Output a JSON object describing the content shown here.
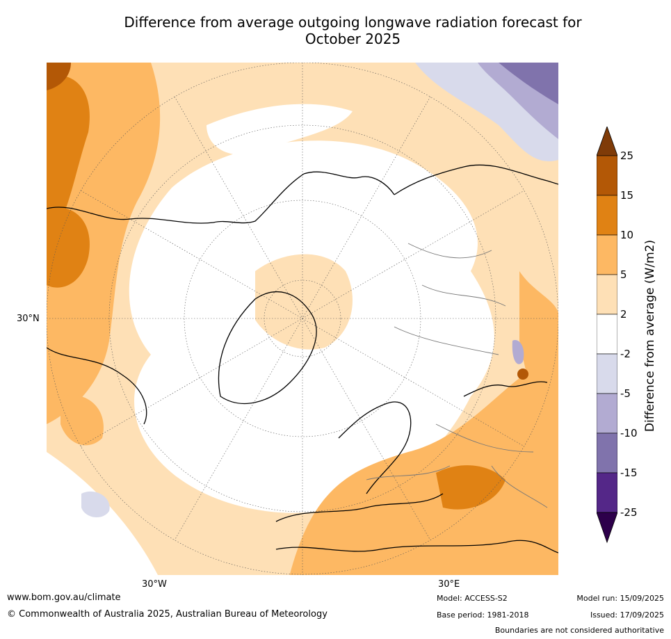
{
  "title": {
    "line1": "Difference from average outgoing longwave radiation forecast for",
    "line2": "October 2025"
  },
  "map": {
    "projection": "north-polar-stereographic",
    "lat_label": "30°N",
    "lon_labels": [
      "30°W",
      "30°E"
    ]
  },
  "colorbar": {
    "title": "Difference from average (W/m2)",
    "ticks": [
      "25",
      "15",
      "10",
      "5",
      "2",
      "-2",
      "-5",
      "-10",
      "-15",
      "-25"
    ],
    "colors_top_to_bottom": [
      "#7f3b08",
      "#b35806",
      "#e08214",
      "#fdb863",
      "#fee0b6",
      "#ffffff",
      "#d8daeb",
      "#b2abd2",
      "#8073ac",
      "#542788",
      "#2d004b"
    ]
  },
  "footer": {
    "website": "www.bom.gov.au/climate",
    "copyright": "© Commonwealth of Australia 2025, Australian Bureau of Meteorology",
    "model": "Model: ACCESS-S2",
    "base_period": "Base period: 1981-2018",
    "model_run": "Model run: 15/09/2025",
    "issued": "Issued: 17/09/2025",
    "disclaimer": "Boundaries are not considered authoritative"
  }
}
